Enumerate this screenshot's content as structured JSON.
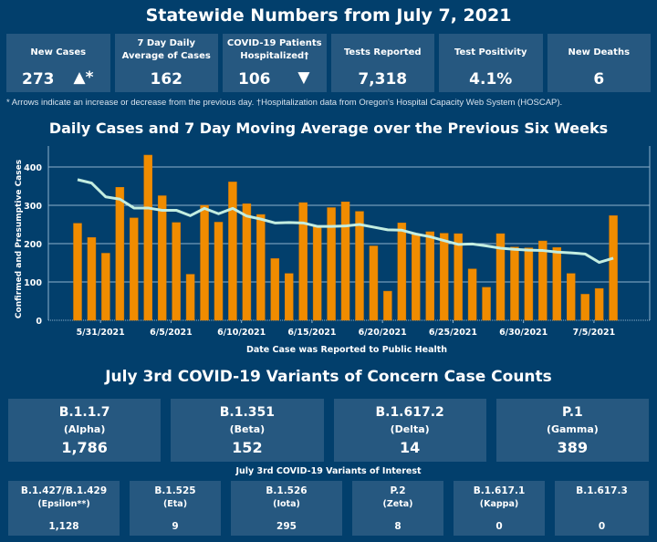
{
  "header": {
    "title": "Statewide Numbers from July 7, 2021"
  },
  "kpis": [
    {
      "label": "New Cases",
      "value": "273",
      "arrow": "▲*",
      "arrow_name": "up-arrow-icon"
    },
    {
      "label": "7 Day Daily Average of Cases",
      "value": "162"
    },
    {
      "label": "COVID-19 Patients Hospitalized†",
      "value": "106",
      "arrow": "▼",
      "arrow_name": "down-arrow-icon"
    },
    {
      "label": "Tests Reported",
      "value": "7,318"
    },
    {
      "label": "Test Positivity",
      "value": "4.1%"
    },
    {
      "label": "New Deaths",
      "value": "6"
    }
  ],
  "footnote": "* Arrows indicate an increase or decrease from the previous day. †Hospitalization data from Oregon's Hospital Capacity Web System (HOSCAP).",
  "chart_title": "Daily Cases and 7 Day Moving Average over the Previous Six Weeks",
  "chart_data": {
    "type": "bar",
    "title": "Daily Cases and 7 Day Moving Average over the Previous Six Weeks",
    "xlabel": "Date Case was Reported to Public Health",
    "ylabel": "Confirmed and Presumptive Cases",
    "ylim": [
      0,
      450
    ],
    "yticks": [
      0,
      100,
      200,
      300,
      400
    ],
    "grid": true,
    "start_date": "5/29/2021",
    "x_tick_labels": [
      {
        "label": "5/31/2021",
        "index": 2
      },
      {
        "label": "6/5/2021",
        "index": 7
      },
      {
        "label": "6/10/2021",
        "index": 12
      },
      {
        "label": "6/15/2021",
        "index": 17
      },
      {
        "label": "6/20/2021",
        "index": 22
      },
      {
        "label": "6/25/2021",
        "index": 27
      },
      {
        "label": "6/30/2021",
        "index": 32
      },
      {
        "label": "7/5/2021",
        "index": 37
      }
    ],
    "colors": {
      "bars": "#f08c00",
      "line": "#c3ede0",
      "grid": "#8fb0cc"
    },
    "series": [
      {
        "name": "Daily Cases",
        "type": "bar",
        "values": [
          253,
          216,
          175,
          347,
          267,
          431,
          325,
          255,
          120,
          300,
          256,
          361,
          304,
          276,
          161,
          122,
          307,
          245,
          294,
          309,
          284,
          194,
          76,
          254,
          225,
          231,
          227,
          226,
          134,
          86,
          226,
          191,
          189,
          207,
          190,
          122,
          68,
          83,
          273
        ]
      },
      {
        "name": "7 Day Moving Average",
        "type": "line",
        "values": [
          367,
          358,
          322,
          316,
          293,
          293,
          287,
          287,
          273,
          292,
          278,
          292,
          272,
          264,
          254,
          255,
          254,
          245,
          245,
          246,
          250,
          243,
          236,
          235,
          225,
          218,
          208,
          198,
          199,
          194,
          188,
          185,
          183,
          182,
          178,
          176,
          173,
          151,
          162
        ]
      }
    ]
  },
  "variants_title": "July 3rd  COVID-19 Variants of Concern Case Counts",
  "variants_of_concern": [
    {
      "lineage": "B.1.1.7",
      "name": "(Alpha)",
      "count": "1,786"
    },
    {
      "lineage": "B.1.351",
      "name": "(Beta)",
      "count": "152"
    },
    {
      "lineage": "B.1.617.2",
      "name": "(Delta)",
      "count": "14"
    },
    {
      "lineage": "P.1",
      "name": "(Gamma)",
      "count": "389"
    }
  ],
  "voi_title": "July 3rd COVID-19 Variants of Interest",
  "variants_of_interest": [
    {
      "lineage": "B.1.427/B.1.429",
      "name": "(Epsilon**)",
      "count": "1,128"
    },
    {
      "lineage": "B.1.525",
      "name": "(Eta)",
      "count": "9"
    },
    {
      "lineage": "B.1.526",
      "name": "(Iota)",
      "count": "295"
    },
    {
      "lineage": "P.2",
      "name": "(Zeta)",
      "count": "8"
    },
    {
      "lineage": "B.1.617.1",
      "name": "(Kappa)",
      "count": "0"
    },
    {
      "lineage": "B.1.617.3",
      "name": "",
      "count": "0"
    }
  ]
}
